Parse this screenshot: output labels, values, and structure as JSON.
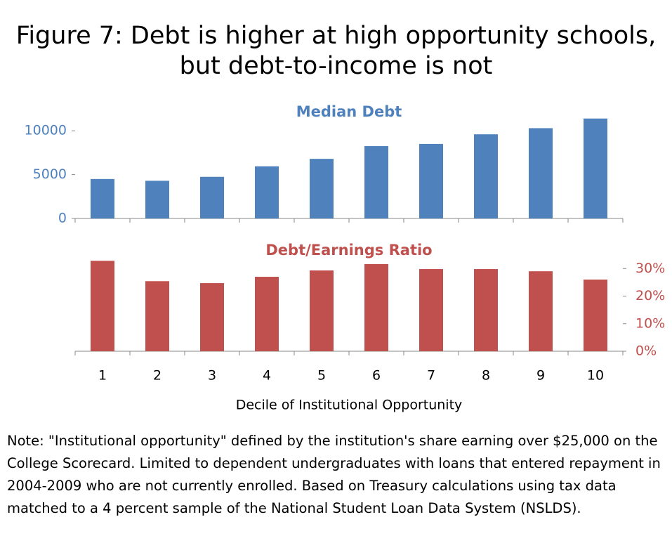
{
  "title": "Figure 7: Debt is higher at high opportunity schools, but debt-to-income is not",
  "note": "Note: \"Institutional opportunity\" defined by the institution's share earning over $25,000 on the College Scorecard. Limited to dependent undergraduates with loans that entered repayment in 2004-2009 who are not currently enrolled. Based on Treasury calculations using tax data matched to a 4 percent sample of the National Student Loan Data System (NSLDS).",
  "chart_data": [
    {
      "type": "bar",
      "title": "Median Debt",
      "color": "#4f81bd",
      "axis_side": "left",
      "values": [
        4500,
        4300,
        4750,
        5950,
        6800,
        8250,
        8500,
        9600,
        10300,
        11400
      ],
      "ylim": [
        0,
        12500
      ],
      "yticks": [
        0,
        5000,
        10000
      ]
    },
    {
      "type": "bar",
      "title": "Debt/Earnings Ratio",
      "color": "#c0504d",
      "axis_side": "right",
      "categories": [
        "1",
        "2",
        "3",
        "4",
        "5",
        "6",
        "7",
        "8",
        "9",
        "10"
      ],
      "xlabel": "Decile of Institutional Opportunity",
      "values": [
        32.8,
        25.4,
        24.7,
        27.0,
        29.3,
        31.6,
        29.8,
        29.8,
        29.0,
        26.0
      ],
      "ylim": [
        0,
        40
      ],
      "yticks": [
        {
          "value": 0,
          "label": "0%"
        },
        {
          "value": 10,
          "label": "10%"
        },
        {
          "value": 20,
          "label": "20%"
        },
        {
          "value": 30,
          "label": "30%"
        }
      ]
    }
  ]
}
